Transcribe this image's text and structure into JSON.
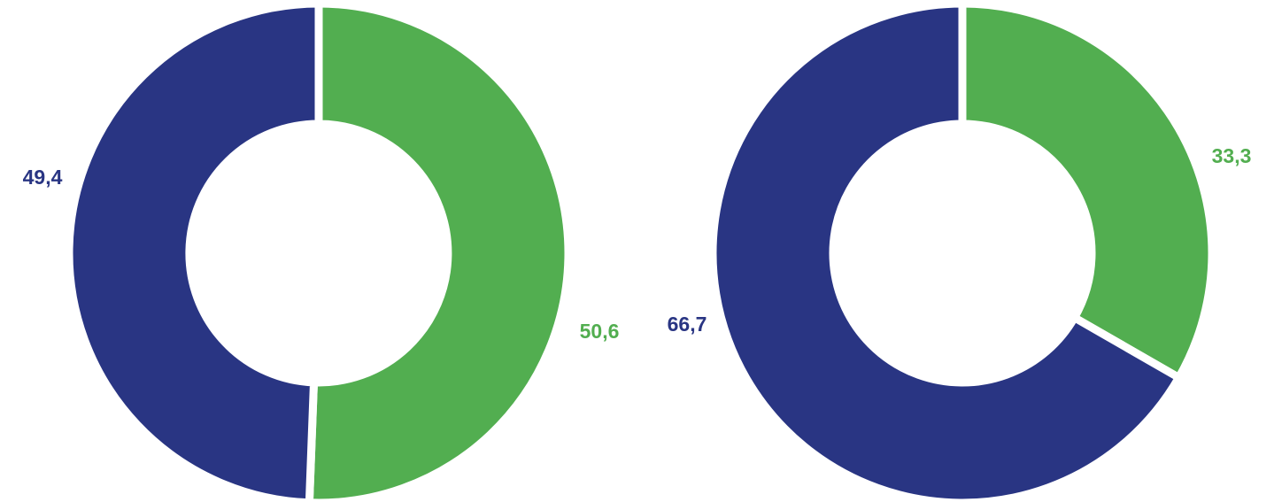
{
  "chart_data": [
    {
      "type": "donut",
      "title": "",
      "series": [
        {
          "values": [
            50.6,
            49.4
          ],
          "colors": [
            "#52ae50",
            "#293583"
          ]
        }
      ],
      "data_labels": [
        "50,6",
        "49,4"
      ],
      "label_colors": [
        "#52ae50",
        "#293583"
      ],
      "start_angle": "12 o'clock",
      "direction": "clockwise",
      "legend": "none"
    },
    {
      "type": "donut",
      "title": "",
      "series": [
        {
          "values": [
            33.3,
            66.7
          ],
          "colors": [
            "#52ae50",
            "#293583"
          ]
        }
      ],
      "data_labels": [
        "33,3",
        "66,7"
      ],
      "label_colors": [
        "#52ae50",
        "#293583"
      ],
      "start_angle": "12 o'clock",
      "direction": "clockwise",
      "legend": "none"
    }
  ]
}
